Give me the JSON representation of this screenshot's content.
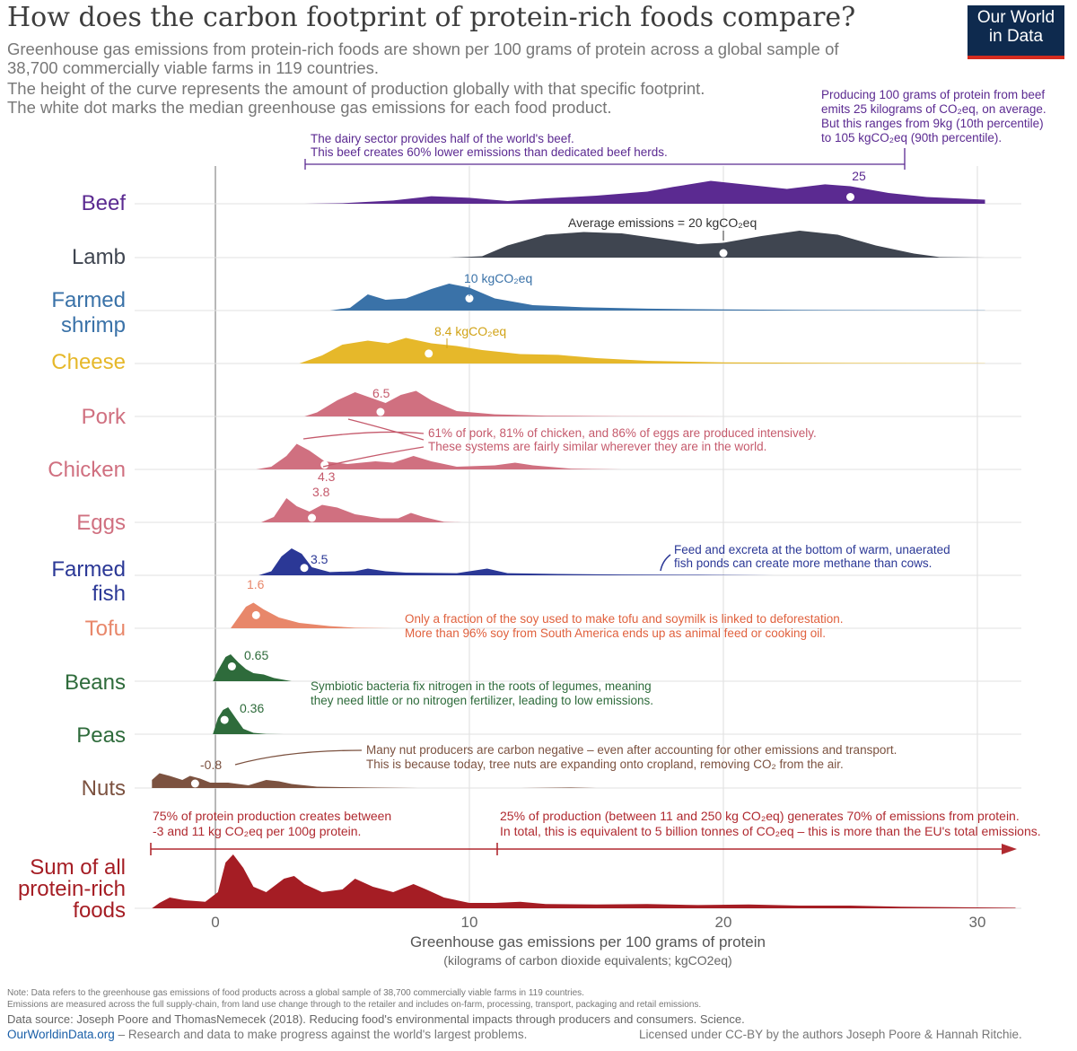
{
  "header": {
    "title": "How does the carbon footprint of protein-rich foods compare?",
    "subtitle_lines": [
      "Greenhouse gas emissions from protein-rich foods are shown per 100 grams of protein across a global sample of",
      "38,700 commercially viable farms in 119 countries.",
      "The height of the curve represents the amount of production globally with that specific footprint.",
      "The white dot marks the median greenhouse gas emissions for each food product."
    ],
    "logo_line1": "Our World",
    "logo_line2": "in Data"
  },
  "chart_data": {
    "type": "ridgeline",
    "title": "How does the carbon footprint of protein-rich foods compare?",
    "xlabel": "Greenhouse gas emissions per 100 grams of protein",
    "xlabel_sub": "(kilograms of carbon dioxide equivalents; kgCO2eq)",
    "xlim": [
      -2.5,
      31.5
    ],
    "xticks": [
      0,
      10,
      20,
      30
    ],
    "series": [
      {
        "name": "Beef",
        "label_lines": [
          "Beef"
        ],
        "color": "#5b2a91",
        "median": 25,
        "median_label": "25",
        "range": [
          3.5,
          30.3
        ],
        "density": [
          [
            3.5,
            0
          ],
          [
            5,
            0.02
          ],
          [
            7,
            0.12
          ],
          [
            8.5,
            0.28
          ],
          [
            10,
            0.22
          ],
          [
            11.5,
            0.1
          ],
          [
            13,
            0.2
          ],
          [
            15,
            0.3
          ],
          [
            17,
            0.45
          ],
          [
            18,
            0.62
          ],
          [
            19.5,
            0.85
          ],
          [
            21,
            0.7
          ],
          [
            22.5,
            0.55
          ],
          [
            24,
            0.72
          ],
          [
            25,
            0.65
          ],
          [
            26.5,
            0.4
          ],
          [
            28,
            0.25
          ],
          [
            30.3,
            0.15
          ]
        ]
      },
      {
        "name": "Lamb",
        "label_lines": [
          "Lamb"
        ],
        "color": "#3f4550",
        "median": 20,
        "median_label": "Average emissions = 20 kgCO₂eq",
        "range": [
          9.2,
          30.3
        ],
        "density": [
          [
            9.2,
            0
          ],
          [
            10.5,
            0.05
          ],
          [
            11.5,
            0.45
          ],
          [
            13,
            0.85
          ],
          [
            14.5,
            0.95
          ],
          [
            16,
            0.9
          ],
          [
            17.5,
            0.7
          ],
          [
            19,
            0.5
          ],
          [
            20,
            0.55
          ],
          [
            21.5,
            0.8
          ],
          [
            23,
            1.0
          ],
          [
            24.5,
            0.85
          ],
          [
            26,
            0.45
          ],
          [
            27.5,
            0.15
          ],
          [
            28.5,
            0.02
          ],
          [
            30.3,
            0
          ]
        ]
      },
      {
        "name": "Farmed shrimp",
        "label_lines": [
          "Farmed",
          "shrimp"
        ],
        "color": "#3a72a8",
        "median": 10,
        "median_label": "10 kgCO₂eq",
        "range": [
          4.5,
          30.3
        ],
        "density": [
          [
            4.5,
            0
          ],
          [
            5.3,
            0.1
          ],
          [
            6,
            0.6
          ],
          [
            6.7,
            0.4
          ],
          [
            7.5,
            0.45
          ],
          [
            8.5,
            0.8
          ],
          [
            9.2,
            1.0
          ],
          [
            10,
            0.85
          ],
          [
            11,
            0.45
          ],
          [
            12.5,
            0.2
          ],
          [
            14.5,
            0.12
          ],
          [
            17,
            0.07
          ],
          [
            20,
            0.04
          ],
          [
            24,
            0.02
          ],
          [
            30.3,
            0.01
          ]
        ]
      },
      {
        "name": "Cheese",
        "label_lines": [
          "Cheese"
        ],
        "color": "#e6b82a",
        "median": 8.4,
        "median_label": "8.4 kgCO₂eq",
        "range": [
          3.3,
          30.3
        ],
        "density": [
          [
            3.3,
            0
          ],
          [
            4.2,
            0.3
          ],
          [
            5,
            0.7
          ],
          [
            6,
            0.85
          ],
          [
            6.8,
            0.75
          ],
          [
            7.5,
            0.95
          ],
          [
            8.5,
            0.75
          ],
          [
            9.5,
            0.65
          ],
          [
            10.5,
            0.5
          ],
          [
            12,
            0.35
          ],
          [
            13.5,
            0.32
          ],
          [
            15,
            0.2
          ],
          [
            17,
            0.1
          ],
          [
            20,
            0.04
          ],
          [
            25,
            0.02
          ],
          [
            30.3,
            0.01
          ]
        ]
      },
      {
        "name": "Pork",
        "label_lines": [
          "Pork"
        ],
        "color": "#d07080",
        "median": 6.5,
        "median_label": "6.5",
        "range": [
          3.5,
          25.5
        ],
        "density": [
          [
            3.5,
            0
          ],
          [
            4,
            0.15
          ],
          [
            4.8,
            0.6
          ],
          [
            5.5,
            0.9
          ],
          [
            6.1,
            0.7
          ],
          [
            6.7,
            0.5
          ],
          [
            7.3,
            0.8
          ],
          [
            7.9,
            0.95
          ],
          [
            8.5,
            0.6
          ],
          [
            9.5,
            0.2
          ],
          [
            11,
            0.08
          ],
          [
            13,
            0.03
          ],
          [
            16,
            0.01
          ],
          [
            20,
            0
          ],
          [
            25.5,
            0
          ]
        ]
      },
      {
        "name": "Chicken",
        "label_lines": [
          "Chicken"
        ],
        "color": "#d07080",
        "median": 4.3,
        "median_label": "4.3",
        "range": [
          1.6,
          16
        ],
        "density": [
          [
            1.6,
            0
          ],
          [
            2.2,
            0.1
          ],
          [
            2.8,
            0.5
          ],
          [
            3.2,
            0.95
          ],
          [
            3.7,
            0.7
          ],
          [
            4.3,
            0.3
          ],
          [
            5.2,
            0.2
          ],
          [
            6.3,
            0.3
          ],
          [
            7,
            0.25
          ],
          [
            7.8,
            0.5
          ],
          [
            8.5,
            0.3
          ],
          [
            9.5,
            0.1
          ],
          [
            11,
            0.15
          ],
          [
            11.8,
            0.25
          ],
          [
            12.5,
            0.15
          ],
          [
            14,
            0.03
          ],
          [
            16,
            0
          ]
        ]
      },
      {
        "name": "Eggs",
        "label_lines": [
          "Eggs"
        ],
        "color": "#d07080",
        "median": 3.8,
        "median_label": "3.8",
        "range": [
          1.8,
          9.7
        ],
        "density": [
          [
            1.8,
            0
          ],
          [
            2.3,
            0.2
          ],
          [
            2.8,
            0.9
          ],
          [
            3.2,
            0.6
          ],
          [
            3.7,
            0.4
          ],
          [
            4.2,
            0.65
          ],
          [
            4.8,
            0.55
          ],
          [
            5.5,
            0.3
          ],
          [
            6.5,
            0.15
          ],
          [
            7.2,
            0.15
          ],
          [
            7.7,
            0.35
          ],
          [
            8.2,
            0.2
          ],
          [
            9,
            0.02
          ],
          [
            9.7,
            0
          ]
        ]
      },
      {
        "name": "Farmed fish",
        "label_lines": [
          "Farmed",
          "fish"
        ],
        "color": "#2b3896",
        "median": 3.5,
        "median_label": "3.5",
        "range": [
          1.7,
          22
        ],
        "density": [
          [
            1.7,
            0
          ],
          [
            2.2,
            0.15
          ],
          [
            2.6,
            0.7
          ],
          [
            3,
            1.0
          ],
          [
            3.4,
            0.8
          ],
          [
            3.8,
            0.3
          ],
          [
            4.5,
            0.12
          ],
          [
            5.5,
            0.15
          ],
          [
            6,
            0.25
          ],
          [
            6.7,
            0.15
          ],
          [
            7.5,
            0.1
          ],
          [
            9.5,
            0.08
          ],
          [
            10.7,
            0.25
          ],
          [
            11.5,
            0.08
          ],
          [
            13.5,
            0.05
          ],
          [
            16,
            0.03
          ],
          [
            19,
            0.02
          ],
          [
            22,
            0
          ]
        ]
      },
      {
        "name": "Tofu",
        "label_lines": [
          "Tofu"
        ],
        "color": "#e8876a",
        "median": 1.6,
        "median_label": "1.6",
        "range": [
          0.6,
          7
        ],
        "density": [
          [
            0.6,
            0
          ],
          [
            0.9,
            0.4
          ],
          [
            1.2,
            0.8
          ],
          [
            1.5,
            0.95
          ],
          [
            1.9,
            0.7
          ],
          [
            2.5,
            0.4
          ],
          [
            3.3,
            0.2
          ],
          [
            4.5,
            0.08
          ],
          [
            5.5,
            0.02
          ],
          [
            7,
            0
          ]
        ]
      },
      {
        "name": "Beans",
        "label_lines": [
          "Beans"
        ],
        "color": "#2e6b3b",
        "median": 0.65,
        "median_label": "0.65",
        "range": [
          -0.1,
          3
        ],
        "density": [
          [
            -0.1,
            0
          ],
          [
            0.1,
            0.4
          ],
          [
            0.4,
            0.9
          ],
          [
            0.6,
            1.0
          ],
          [
            0.9,
            0.7
          ],
          [
            1.2,
            0.45
          ],
          [
            1.5,
            0.3
          ],
          [
            1.9,
            0.25
          ],
          [
            2.3,
            0.12
          ],
          [
            3,
            0
          ]
        ]
      },
      {
        "name": "Peas",
        "label_lines": [
          "Peas"
        ],
        "color": "#2e6b3b",
        "median": 0.36,
        "median_label": "0.36",
        "range": [
          -0.1,
          2.7
        ],
        "density": [
          [
            -0.1,
            0
          ],
          [
            0.1,
            0.6
          ],
          [
            0.3,
            0.9
          ],
          [
            0.5,
            1.0
          ],
          [
            0.8,
            0.6
          ],
          [
            1.1,
            0.2
          ],
          [
            1.5,
            0.05
          ],
          [
            2,
            0.01
          ],
          [
            2.7,
            0
          ]
        ]
      },
      {
        "name": "Nuts",
        "label_lines": [
          "Nuts"
        ],
        "color": "#7c5240",
        "median": -0.8,
        "median_label": "-0.8",
        "range": [
          -2.5,
          31.5
        ],
        "density": [
          [
            -2.5,
            0.3
          ],
          [
            -2.2,
            0.55
          ],
          [
            -1.8,
            0.45
          ],
          [
            -1.3,
            0.3
          ],
          [
            -1,
            0.45
          ],
          [
            -0.6,
            0.35
          ],
          [
            -0.2,
            0.2
          ],
          [
            0.5,
            0.2
          ],
          [
            1.3,
            0.1
          ],
          [
            2,
            0.3
          ],
          [
            2.5,
            0.25
          ],
          [
            3,
            0.15
          ],
          [
            4,
            0.05
          ],
          [
            6,
            0.02
          ],
          [
            8,
            0
          ],
          [
            12,
            0
          ],
          [
            14,
            0.02
          ],
          [
            15,
            0
          ],
          [
            31.5,
            0
          ]
        ]
      }
    ],
    "sum_series": {
      "name": "Sum of all protein-rich foods",
      "label_lines": [
        "Sum of all",
        "protein-rich",
        "foods"
      ],
      "color": "#a51d24",
      "range": [
        -2.5,
        31.5
      ],
      "density": [
        [
          -2.5,
          0
        ],
        [
          -2.2,
          0.1
        ],
        [
          -1.8,
          0.2
        ],
        [
          -1.2,
          0.15
        ],
        [
          -0.4,
          0.12
        ],
        [
          0.1,
          0.3
        ],
        [
          0.4,
          0.85
        ],
        [
          0.7,
          1.0
        ],
        [
          1.1,
          0.75
        ],
        [
          1.5,
          0.4
        ],
        [
          2,
          0.3
        ],
        [
          2.7,
          0.55
        ],
        [
          3.1,
          0.6
        ],
        [
          3.5,
          0.45
        ],
        [
          4.2,
          0.3
        ],
        [
          5,
          0.35
        ],
        [
          5.5,
          0.55
        ],
        [
          6.2,
          0.4
        ],
        [
          7,
          0.3
        ],
        [
          7.8,
          0.45
        ],
        [
          8.3,
          0.35
        ],
        [
          9,
          0.2
        ],
        [
          10,
          0.1
        ],
        [
          11,
          0.1
        ],
        [
          12,
          0.12
        ],
        [
          13,
          0.08
        ],
        [
          15,
          0.07
        ],
        [
          17,
          0.08
        ],
        [
          19,
          0.06
        ],
        [
          21,
          0.07
        ],
        [
          23,
          0.05
        ],
        [
          25,
          0.05
        ],
        [
          27,
          0.03
        ],
        [
          29,
          0.02
        ],
        [
          31.5,
          0.01
        ]
      ]
    },
    "annotations": {
      "beef_range": [
        "The dairy sector provides half of the world's beef.",
        "This beef creates 60% lower emissions than dedicated beef herds."
      ],
      "beef_note": [
        "Producing 100 grams of protein from beef",
        "emits 25 kilograms of CO₂eq, on average.",
        "But this ranges from 9kg (10th percentile)",
        "to 105 kgCO₂eq (90th percentile)."
      ],
      "intensive": [
        "61% of pork, 81% of chicken, and 86% of eggs are produced intensively.",
        "These systems are fairly similar wherever they are in the world."
      ],
      "fish": [
        "Feed and excreta at the bottom of warm, unaerated",
        "fish ponds can create more methane than cows."
      ],
      "tofu": [
        "Only a fraction of the soy used to make tofu and soymilk is linked to deforestation.",
        "More than 96% soy from South America ends up as animal feed or cooking oil."
      ],
      "legumes": [
        "Symbiotic bacteria fix nitrogen in the roots of legumes, meaning",
        "they need little or no nitrogen fertilizer, leading to low emissions."
      ],
      "nuts": [
        "Many nut producers are carbon negative – even after accounting for other emissions and transport.",
        "This is because today, tree nuts are expanding onto cropland, removing CO₂ from the air."
      ],
      "low": [
        "75% of protein production creates between",
        "-3 and 11 kg CO₂eq per 100g protein."
      ],
      "high": [
        "25% of production (between 11 and 250 kg CO₂eq) generates 70% of emissions from protein.",
        "In total, this is equivalent to 5 billion tonnes of CO₂eq – this is more than the EU's total emissions."
      ]
    }
  },
  "footer": {
    "note1": "Note: Data refers to the greenhouse gas emissions of food products across a global sample of 38,700 commercially viable farms in 119 countries.",
    "note2": "Emissions are measured across the full supply-chain, from land use change through to the retailer and includes on-farm, processing, transport, packaging and retail emissions.",
    "source": "Data source: Joseph Poore and ThomasNemecek (2018). Reducing food's environmental impacts through producers and consumers. Science.",
    "site": "OurWorldinData.org",
    "tagline": " – Research and data to make progress against the world's largest problems.",
    "license": "Licensed under CC-BY by the authors Joseph Poore & Hannah Ritchie."
  },
  "colors": {
    "annotation_pink": "#c55a6c",
    "annotation_red": "#b02a30"
  }
}
